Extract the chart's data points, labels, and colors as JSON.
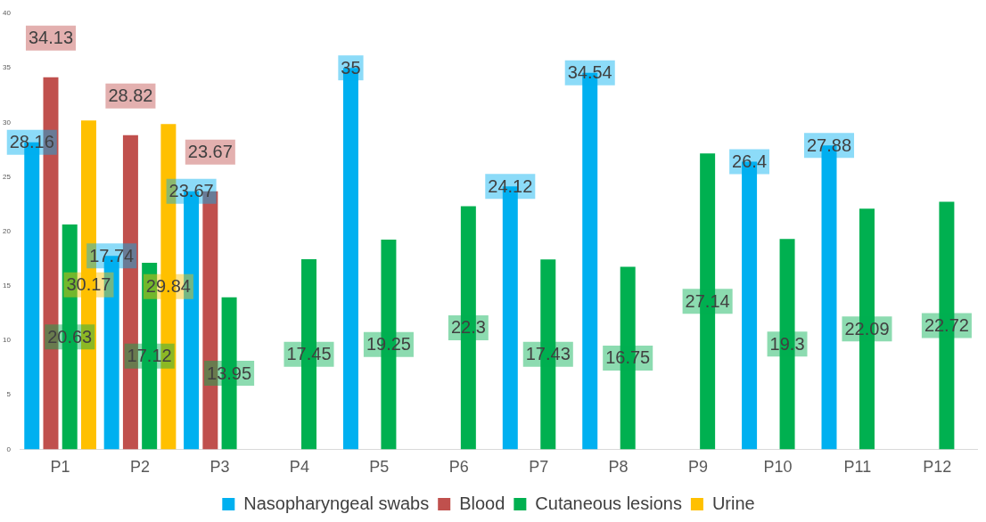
{
  "chart_data": {
    "type": "bar",
    "categories": [
      "P1",
      "P2",
      "P3",
      "P4",
      "P5",
      "P6",
      "P7",
      "P8",
      "P9",
      "P10",
      "P11",
      "P12"
    ],
    "series": [
      {
        "name": "Nasopharyngeal swabs",
        "color": "#00b0f0",
        "values": [
          28.16,
          17.74,
          23.67,
          null,
          35,
          null,
          24.12,
          34.54,
          null,
          26.4,
          27.88,
          null
        ]
      },
      {
        "name": "Blood",
        "color": "#c0504d",
        "values": [
          34.13,
          28.82,
          23.67,
          null,
          null,
          null,
          null,
          null,
          null,
          null,
          null,
          null
        ]
      },
      {
        "name": "Cutaneous lesions",
        "color": "#00b050",
        "values": [
          20.63,
          17.12,
          13.95,
          17.45,
          19.25,
          22.3,
          17.43,
          16.75,
          27.14,
          19.3,
          22.09,
          22.72
        ]
      },
      {
        "name": "Urine",
        "color": "#ffc000",
        "values": [
          30.17,
          29.84,
          null,
          null,
          null,
          null,
          null,
          null,
          null,
          null,
          null,
          null
        ]
      }
    ],
    "ylim": [
      0,
      40
    ],
    "yticks": [
      0,
      5,
      10,
      15,
      20,
      25,
      30,
      35,
      40
    ],
    "grid": false,
    "legend": "bottom",
    "data_labels": true
  }
}
